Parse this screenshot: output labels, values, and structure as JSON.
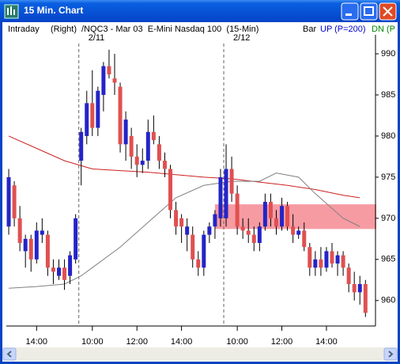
{
  "window": {
    "title": "15 Min. Chart"
  },
  "header": {
    "mode": "Intraday",
    "axis_side": "(Right)",
    "symbol": "/NQC3 - Mar 03  E-Mini Nasdaq 100  (15-Min)",
    "style": "Bar",
    "up": "UP (P=200)",
    "dn": "DN (P"
  },
  "chart_data": {
    "type": "candlestick",
    "x": [
      0,
      1,
      2,
      3,
      4,
      5,
      6,
      7,
      8,
      9,
      10,
      11,
      12,
      13,
      14,
      15,
      16,
      17,
      18,
      19,
      20,
      21,
      22,
      23,
      24,
      25,
      26,
      27,
      28,
      29,
      30,
      31,
      32,
      33,
      34,
      35,
      36,
      37,
      38,
      39,
      40,
      41,
      42,
      43,
      44,
      45,
      46,
      47,
      48,
      49,
      50,
      51,
      52,
      53,
      54,
      55,
      56,
      57,
      58,
      59,
      60,
      61,
      62,
      63,
      64
    ],
    "open": [
      969,
      974,
      970,
      966,
      967.5,
      965,
      968,
      968,
      964,
      963,
      964,
      963,
      965,
      977,
      980,
      984,
      981,
      985,
      988.5,
      987,
      986,
      979,
      980,
      977.5,
      976.5,
      977,
      980.5,
      979,
      977,
      976,
      971,
      970,
      968,
      968,
      965,
      964,
      968,
      969,
      970,
      970,
      976,
      973,
      969,
      968.5,
      968,
      967,
      969,
      972,
      970,
      969,
      971.5,
      969,
      968,
      968.5,
      966.5,
      964,
      965,
      964,
      966,
      964.5,
      965.5,
      964,
      962,
      961,
      962
    ],
    "high": [
      976,
      974.5,
      971.5,
      968,
      968,
      969.5,
      970,
      968.5,
      965,
      965,
      965,
      966,
      970.5,
      981,
      985.5,
      988,
      986,
      989,
      990.5,
      990,
      986.5,
      983,
      981,
      979,
      978.5,
      982,
      982.5,
      980,
      978,
      976.5,
      972,
      970.5,
      970,
      969,
      966,
      968.5,
      969.5,
      971,
      976,
      979,
      977.5,
      974,
      970,
      970,
      969,
      969.5,
      973,
      973,
      971,
      972.5,
      972,
      970.5,
      969,
      969.5,
      967,
      966,
      966.5,
      966.5,
      967,
      966,
      966,
      964.5,
      963.5,
      963,
      962.5
    ],
    "low": [
      968,
      969,
      966,
      964,
      963.5,
      964.5,
      967,
      963,
      962,
      962.5,
      961.3,
      962,
      964.5,
      974,
      979,
      980,
      980,
      983,
      987,
      985,
      978,
      977,
      976,
      975,
      975.5,
      976,
      979,
      976,
      975,
      970,
      968,
      967,
      966,
      964,
      963,
      963,
      967,
      967.5,
      969,
      969,
      972,
      968,
      967.5,
      967,
      966,
      966,
      968.5,
      969,
      968,
      968.5,
      968.5,
      967,
      967.5,
      966,
      963,
      963,
      963,
      963.5,
      964,
      963,
      963,
      961,
      960,
      959.5,
      958
    ],
    "close": [
      975,
      970,
      967,
      967.5,
      965,
      968.5,
      968.5,
      964,
      963.5,
      964,
      962.5,
      965.5,
      970,
      980.5,
      984,
      981,
      985.5,
      988.5,
      987.5,
      986.5,
      979,
      982,
      977.5,
      976.5,
      977,
      980.5,
      979.5,
      977,
      976,
      971,
      969,
      969,
      969,
      965,
      964,
      968,
      969,
      970.5,
      975,
      976,
      973,
      969,
      968.5,
      968,
      967,
      969,
      972,
      970,
      969,
      971.5,
      969,
      968,
      968.5,
      966.5,
      964,
      965,
      964,
      966,
      964.5,
      965.5,
      964,
      962,
      961,
      962,
      958.5
    ],
    "up_color": "#2424c8",
    "down_color": "#e05050",
    "lines": [
      {
        "color": "#cc2020",
        "x": [
          0,
          5,
          10,
          15,
          20,
          25,
          30,
          35,
          40,
          45,
          50,
          55,
          60,
          63
        ],
        "values": [
          980,
          978.5,
          977,
          976,
          975.8,
          975.6,
          975.3,
          975,
          974.8,
          974.4,
          974,
          973.5,
          972.8,
          972.5
        ]
      },
      {
        "color": "#808080",
        "x": [
          0,
          5,
          10,
          13,
          15,
          20,
          25,
          30,
          35,
          40,
          45,
          48,
          52,
          55,
          60,
          63
        ],
        "values": [
          961.5,
          961.7,
          962,
          963,
          964,
          966.5,
          969.5,
          972.5,
          974,
          974.5,
          974.5,
          975.5,
          975,
          973,
          970,
          969
        ]
      }
    ],
    "zone": {
      "from": 968.7,
      "to": 971.7,
      "start": 37,
      "color": "#f47a84"
    },
    "sessions": [
      {
        "x": 13,
        "label": "2/11"
      },
      {
        "x": 39,
        "label": "2/12"
      }
    ],
    "xlim": [
      -0.43,
      65.8
    ],
    "ylim": [
      956.9,
      991.25
    ],
    "yticks": [
      960,
      965,
      970,
      975,
      980,
      985,
      990
    ],
    "xticks": [
      {
        "value": 5,
        "label": "14:00"
      },
      {
        "value": 15,
        "label": "10:00"
      },
      {
        "value": 23,
        "label": "12:00"
      },
      {
        "value": 31,
        "label": "14:00"
      },
      {
        "value": 41,
        "label": "10:00"
      },
      {
        "value": 49,
        "label": "12:00"
      },
      {
        "value": 57,
        "label": "14:00"
      }
    ]
  }
}
